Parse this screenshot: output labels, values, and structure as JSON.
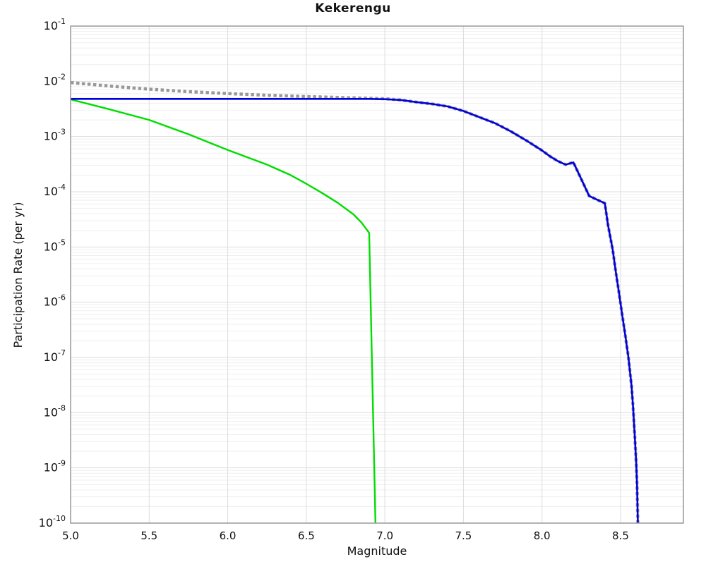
{
  "chart_data": {
    "type": "line",
    "title": "Kekerengu",
    "xlabel": "Magnitude",
    "ylabel": "Participation Rate (per yr)",
    "xlim": [
      5.0,
      8.9
    ],
    "ylim": [
      1e-10,
      0.1
    ],
    "x_ticks": [
      5.0,
      5.5,
      6.0,
      6.5,
      7.0,
      7.5,
      8.0,
      8.5
    ],
    "y_tick_exponents": [
      -1,
      -2,
      -3,
      -4,
      -5,
      -6,
      -7,
      -8,
      -9,
      -10
    ],
    "grid": "major and log-minor gridlines on, light gray",
    "legend_position": "none",
    "colors": {
      "dotted_gray": "#999999",
      "solid_blue": "#0000dd",
      "solid_green": "#00dd00",
      "frame": "#999999",
      "grid_major": "#dddddd",
      "grid_minor": "#efefef"
    },
    "series": [
      {
        "name": "total-target-rate-dotted-gray",
        "color": "#999999",
        "style": "dotted",
        "width": 4.5,
        "points": [
          [
            5.0,
            0.0095
          ],
          [
            5.25,
            0.0082
          ],
          [
            5.5,
            0.0072
          ],
          [
            5.75,
            0.0065
          ],
          [
            6.0,
            0.006
          ],
          [
            6.25,
            0.0056
          ],
          [
            6.5,
            0.0053
          ],
          [
            6.75,
            0.00505
          ],
          [
            6.9,
            0.00495
          ],
          [
            7.0,
            0.00485
          ],
          [
            7.1,
            0.0046
          ],
          [
            7.2,
            0.0042
          ],
          [
            7.3,
            0.0039
          ],
          [
            7.4,
            0.0035
          ],
          [
            7.5,
            0.0029
          ],
          [
            7.6,
            0.00225
          ],
          [
            7.7,
            0.00175
          ],
          [
            7.8,
            0.00125
          ],
          [
            7.9,
            0.00085
          ],
          [
            8.0,
            0.00056
          ],
          [
            8.05,
            0.00044
          ],
          [
            8.1,
            0.00036
          ],
          [
            8.15,
            0.00031
          ],
          [
            8.2,
            0.00034
          ],
          [
            8.25,
            0.00017
          ],
          [
            8.3,
            8.4e-05
          ],
          [
            8.35,
            7.2e-05
          ],
          [
            8.4,
            6.2e-05
          ],
          [
            8.42,
            2.5e-05
          ],
          [
            8.45,
            9e-06
          ],
          [
            8.47,
            3.5e-06
          ],
          [
            8.49,
            1.5e-06
          ],
          [
            8.51,
            6e-07
          ],
          [
            8.53,
            2.5e-07
          ],
          [
            8.55,
            1e-07
          ],
          [
            8.57,
            3e-08
          ],
          [
            8.58,
            1.2e-08
          ],
          [
            8.59,
            4e-09
          ],
          [
            8.6,
            1.2e-09
          ],
          [
            8.605,
            5e-10
          ],
          [
            8.61,
            1e-10
          ]
        ]
      },
      {
        "name": "sub-section-green",
        "color": "#00dd00",
        "style": "solid",
        "width": 2.4,
        "points": [
          [
            5.0,
            0.0047
          ],
          [
            5.25,
            0.0031
          ],
          [
            5.5,
            0.002
          ],
          [
            5.75,
            0.0011
          ],
          [
            6.0,
            0.00057
          ],
          [
            6.25,
            0.00031
          ],
          [
            6.4,
            0.0002
          ],
          [
            6.5,
            0.00014
          ],
          [
            6.6,
            9.5e-05
          ],
          [
            6.7,
            6.3e-05
          ],
          [
            6.8,
            3.9e-05
          ],
          [
            6.85,
            2.8e-05
          ],
          [
            6.9,
            1.8e-05
          ],
          [
            6.94,
            1e-10
          ]
        ]
      },
      {
        "name": "participation-rate-blue",
        "color": "#0000dd",
        "style": "solid",
        "width": 2.6,
        "points": [
          [
            5.0,
            0.0048
          ],
          [
            5.5,
            0.0048
          ],
          [
            6.0,
            0.0048
          ],
          [
            6.5,
            0.0048
          ],
          [
            6.9,
            0.0048
          ],
          [
            7.0,
            0.00475
          ],
          [
            7.1,
            0.0046
          ],
          [
            7.2,
            0.0042
          ],
          [
            7.3,
            0.0039
          ],
          [
            7.4,
            0.0035
          ],
          [
            7.5,
            0.0029
          ],
          [
            7.6,
            0.00225
          ],
          [
            7.7,
            0.00175
          ],
          [
            7.8,
            0.00125
          ],
          [
            7.9,
            0.00085
          ],
          [
            8.0,
            0.00056
          ],
          [
            8.05,
            0.00044
          ],
          [
            8.1,
            0.00036
          ],
          [
            8.15,
            0.00031
          ],
          [
            8.2,
            0.00034
          ],
          [
            8.25,
            0.00017
          ],
          [
            8.3,
            8.4e-05
          ],
          [
            8.35,
            7.2e-05
          ],
          [
            8.4,
            6.2e-05
          ],
          [
            8.42,
            2.5e-05
          ],
          [
            8.45,
            9e-06
          ],
          [
            8.47,
            3.5e-06
          ],
          [
            8.49,
            1.5e-06
          ],
          [
            8.51,
            6e-07
          ],
          [
            8.53,
            2.5e-07
          ],
          [
            8.55,
            1e-07
          ],
          [
            8.57,
            3e-08
          ],
          [
            8.58,
            1.2e-08
          ],
          [
            8.59,
            4e-09
          ],
          [
            8.6,
            1.2e-09
          ],
          [
            8.605,
            5e-10
          ],
          [
            8.61,
            1e-10
          ]
        ]
      }
    ]
  }
}
